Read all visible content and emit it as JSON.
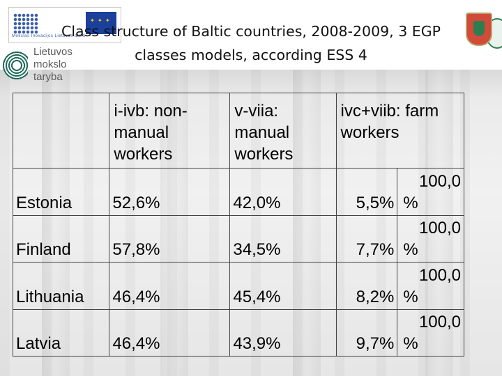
{
  "title": {
    "line1": "Class structure of Baltic countries, 2008-2009, 3 EGP",
    "line2": "classes models, according ESS 4"
  },
  "logos": {
    "es_funds": {
      "icon": "eu-structural-funds-logo",
      "caption": "Mokslas Inovacijos  Lietuvos ateiti"
    },
    "lmt": {
      "icon": "lmt-ring-logo",
      "line1": "Lietuvos",
      "line2": "mokslo",
      "line3": "taryba"
    },
    "university": {
      "icon": "university-shield-logo"
    }
  },
  "table": {
    "headers": [
      "",
      "i-ivb: non-manual workers",
      "v-viia: manual workers",
      "ivc+viib: farm workers",
      ""
    ],
    "rows": [
      {
        "country": "Estonia",
        "nonmanual": "52,6%",
        "manual": "42,0%",
        "farm": "5,5%",
        "total": "100,0",
        "total_unit": "%"
      },
      {
        "country": "Finland",
        "nonmanual": "57,8%",
        "manual": "34,5%",
        "farm": "7,7%",
        "total": "100,0",
        "total_unit": "%"
      },
      {
        "country": "Lithuania",
        "nonmanual": "46,4%",
        "manual": "45,4%",
        "farm": "8,2%",
        "total": "100,0",
        "total_unit": "%"
      },
      {
        "country": "Latvia",
        "nonmanual": "46,4%",
        "manual": "43,9%",
        "farm": "9,7%",
        "total": "100,0",
        "total_unit": "%"
      }
    ]
  }
}
